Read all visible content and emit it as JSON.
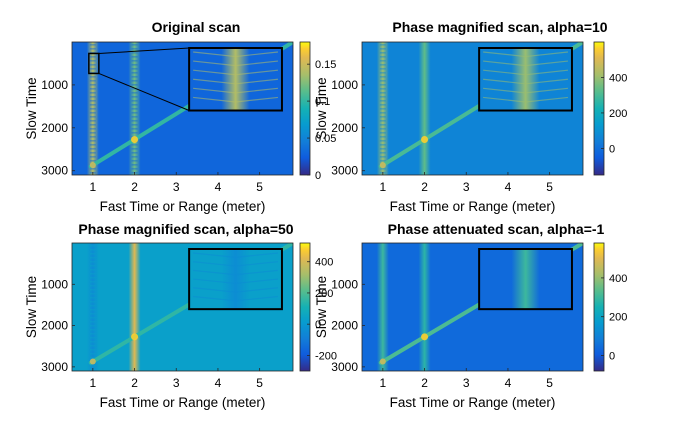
{
  "chart_data": [
    {
      "type": "heatmap",
      "title": "Original scan",
      "xlabel": "Fast Time or Range (meter)",
      "ylabel": "Slow Time",
      "xlim": [
        0.5,
        5.8
      ],
      "ylim": [
        3100,
        0
      ],
      "xticks": [
        1,
        2,
        3,
        4,
        5
      ],
      "yticks": [
        1000,
        2000,
        3000
      ],
      "colormap": "parula",
      "colorbar": {
        "ticks": [
          0,
          0.05,
          0.1,
          0.15
        ],
        "tick_labels": [
          "0",
          "0.05",
          "0.1",
          "0.15"
        ],
        "range": [
          0,
          0.18
        ]
      },
      "background_value": 0.03,
      "vertical_lines": [
        {
          "x": 1.0,
          "value": 0.14,
          "striped": true
        },
        {
          "x": 2.0,
          "value": 0.12,
          "striped": true
        }
      ],
      "diagonal_line": {
        "from": [
          0.95,
          2900
        ],
        "to": [
          5.8,
          0
        ],
        "value": 0.1
      },
      "inset": {
        "shows": [
          1.0,
          500
        ]
      }
    },
    {
      "type": "heatmap",
      "title": "Phase magnified scan, alpha=10",
      "xlabel": "Fast Time or Range (meter)",
      "ylabel": "Slow Time",
      "xlim": [
        0.5,
        5.8
      ],
      "ylim": [
        3100,
        0
      ],
      "xticks": [
        1,
        2,
        3,
        4,
        5
      ],
      "yticks": [
        1000,
        2000,
        3000
      ],
      "colormap": "parula",
      "colorbar": {
        "ticks": [
          0,
          200,
          400
        ],
        "tick_labels": [
          "0",
          "200",
          "400"
        ],
        "range": [
          -150,
          600
        ]
      },
      "background_value": 60,
      "vertical_lines": [
        {
          "x": 1.0,
          "value": 400,
          "striped": true
        },
        {
          "x": 2.0,
          "value": 330,
          "striped": false
        }
      ],
      "diagonal_line": {
        "from": [
          0.95,
          2900
        ],
        "to": [
          5.8,
          0
        ],
        "value": 300
      },
      "inset": {
        "shows": [
          1.0,
          500
        ]
      }
    },
    {
      "type": "heatmap",
      "title": "Phase magnified scan, alpha=50",
      "xlabel": "Fast Time or Range (meter)",
      "ylabel": "Slow Time",
      "xlim": [
        0.5,
        5.8
      ],
      "ylim": [
        3100,
        0
      ],
      "xticks": [
        1,
        2,
        3,
        4,
        5
      ],
      "yticks": [
        1000,
        2000,
        3000
      ],
      "colormap": "parula",
      "colorbar": {
        "ticks": [
          -200,
          0,
          200,
          400
        ],
        "tick_labels": [
          "-200",
          "0",
          "200",
          "400"
        ],
        "range": [
          -300,
          520
        ]
      },
      "background_value": 30,
      "vertical_lines": [
        {
          "x": 1.0,
          "value": -40,
          "striped": true
        },
        {
          "x": 2.0,
          "value": 420,
          "striped": false
        }
      ],
      "diagonal_line": {
        "from": [
          0.95,
          2900
        ],
        "to": [
          5.8,
          0
        ],
        "value": 150
      },
      "inset": {
        "shows": [
          1.0,
          500
        ]
      }
    },
    {
      "type": "heatmap",
      "title": "Phase attenuated scan, alpha=-1",
      "xlabel": "Fast Time or Range (meter)",
      "ylabel": "Slow Time",
      "xlim": [
        0.5,
        5.8
      ],
      "ylim": [
        3100,
        0
      ],
      "xticks": [
        1,
        2,
        3,
        4,
        5
      ],
      "yticks": [
        1000,
        2000,
        3000
      ],
      "colormap": "parula",
      "colorbar": {
        "ticks": [
          0,
          200,
          400
        ],
        "tick_labels": [
          "0",
          "200",
          "400"
        ],
        "range": [
          -80,
          580
        ]
      },
      "background_value": 40,
      "vertical_lines": [
        {
          "x": 1.0,
          "value": 300,
          "striped": false
        },
        {
          "x": 2.0,
          "value": 280,
          "striped": false
        }
      ],
      "diagonal_line": {
        "from": [
          0.95,
          2900
        ],
        "to": [
          5.8,
          0
        ],
        "value": 320
      },
      "inset": {
        "shows": [
          1.0,
          500
        ]
      }
    }
  ]
}
